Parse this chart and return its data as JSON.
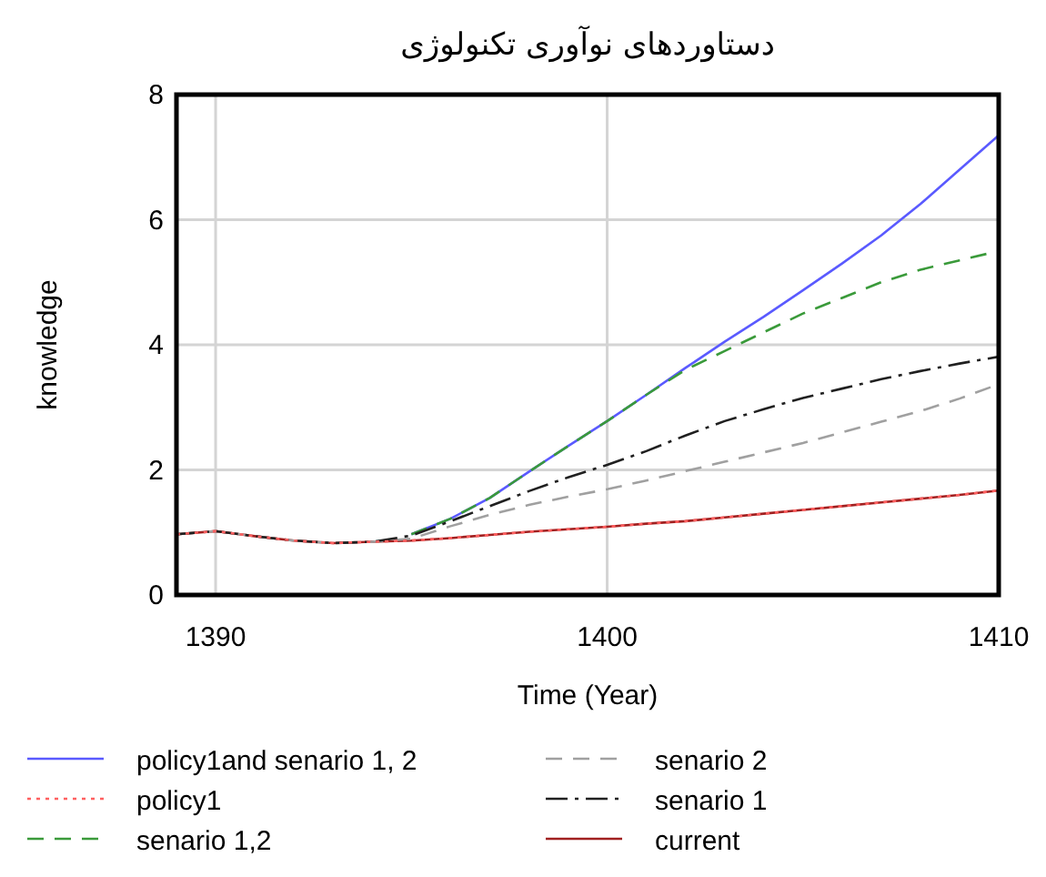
{
  "chart_data": {
    "type": "line",
    "title": "دستاوردهای نوآوری تکنولوژی",
    "xlabel": "Time (Year)",
    "ylabel": "knowledge",
    "x": [
      1389,
      1390,
      1391,
      1392,
      1393,
      1394,
      1395,
      1396,
      1397,
      1398,
      1399,
      1400,
      1401,
      1402,
      1403,
      1404,
      1405,
      1406,
      1407,
      1408,
      1409,
      1410
    ],
    "xlim": [
      1389,
      1410
    ],
    "xticks": [
      1390,
      1400,
      1410
    ],
    "ylim": [
      0,
      8
    ],
    "yticks": [
      0,
      2,
      4,
      6,
      8
    ],
    "grid": true,
    "legend": "bottom",
    "series": [
      {
        "name": "policy1and senario 1, 2",
        "color": "#5a5aff",
        "line_style": "solid",
        "values": [
          null,
          null,
          null,
          null,
          null,
          null,
          0.97,
          1.22,
          1.55,
          1.97,
          2.38,
          2.78,
          3.2,
          3.63,
          4.05,
          4.45,
          4.87,
          5.3,
          5.75,
          6.25,
          6.8,
          7.35
        ]
      },
      {
        "name": "policy1",
        "color": "#ff6060",
        "line_style": "dotted",
        "values": [
          0.97,
          1.02,
          0.94,
          0.87,
          0.83,
          0.85,
          0.87,
          0.91,
          0.96,
          1.01,
          1.05,
          1.09,
          1.14,
          1.18,
          1.24,
          1.3,
          1.36,
          1.42,
          1.48,
          1.54,
          1.6,
          1.67
        ]
      },
      {
        "name": "senario 1,2",
        "color": "#3a9a3a",
        "line_style": "dashed",
        "values": [
          null,
          null,
          null,
          null,
          null,
          null,
          0.97,
          1.22,
          1.55,
          1.97,
          2.38,
          2.78,
          3.2,
          3.6,
          3.9,
          4.2,
          4.5,
          4.75,
          5.0,
          5.2,
          5.35,
          5.5
        ]
      },
      {
        "name": "senario 2",
        "color": "#a0a0a0",
        "line_style": "dashed",
        "values": [
          0.97,
          1.02,
          0.94,
          0.87,
          0.83,
          0.85,
          0.9,
          1.1,
          1.28,
          1.44,
          1.57,
          1.69,
          1.83,
          1.98,
          2.13,
          2.28,
          2.43,
          2.6,
          2.77,
          2.94,
          3.14,
          3.37
        ]
      },
      {
        "name": "senario 1",
        "color": "#202020",
        "line_style": "dashdot",
        "values": [
          0.97,
          1.02,
          0.94,
          0.87,
          0.83,
          0.85,
          0.95,
          1.18,
          1.42,
          1.66,
          1.88,
          2.08,
          2.3,
          2.55,
          2.78,
          2.97,
          3.15,
          3.3,
          3.45,
          3.58,
          3.7,
          3.81
        ]
      },
      {
        "name": "current",
        "color": "#a02020",
        "line_style": "solid",
        "values": [
          0.97,
          1.02,
          0.94,
          0.87,
          0.83,
          0.85,
          0.87,
          0.91,
          0.96,
          1.01,
          1.05,
          1.09,
          1.14,
          1.18,
          1.24,
          1.3,
          1.36,
          1.42,
          1.48,
          1.54,
          1.6,
          1.67
        ]
      }
    ]
  }
}
